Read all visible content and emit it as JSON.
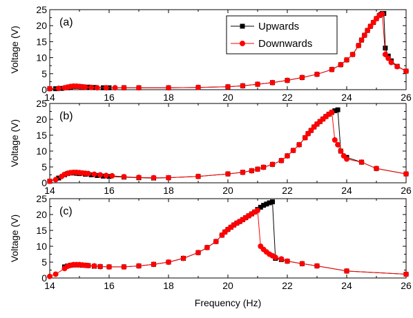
{
  "chart_data": [
    {
      "type": "line",
      "panel_label": "(a)",
      "ylabel": "Voltage (V)",
      "xlabel": "",
      "xlim": [
        14,
        26
      ],
      "ylim": [
        0,
        25
      ],
      "xticks": [
        "14",
        "16",
        "18",
        "20",
        "22",
        "24",
        "26"
      ],
      "yticks": [
        "0",
        "5",
        "10",
        "15",
        "20",
        "25"
      ],
      "legend": {
        "position": "top-right",
        "entries": [
          "Upwards",
          "Downwards"
        ]
      },
      "series": [
        {
          "name": "Upwards",
          "color": "#000000",
          "marker": "square",
          "x": [
            14.0,
            14.2,
            14.4,
            14.6,
            14.7,
            14.8,
            14.9,
            15.0,
            15.1,
            15.3,
            15.5,
            15.8,
            16.0,
            16.5,
            17.0,
            18.0,
            19.0,
            20.0,
            20.5,
            21.0,
            21.5,
            22.0,
            22.5,
            23.0,
            23.5,
            23.8,
            24.0,
            24.2,
            24.4,
            24.5,
            24.6,
            24.7,
            24.8,
            24.9,
            25.0,
            25.1,
            25.15,
            25.2,
            25.25,
            25.3,
            25.4,
            25.5,
            25.7,
            26.0
          ],
          "y": [
            0.3,
            0.3,
            0.4,
            0.6,
            0.8,
            1.0,
            1.0,
            1.0,
            0.9,
            0.8,
            0.7,
            0.6,
            0.6,
            0.6,
            0.6,
            0.6,
            0.7,
            0.9,
            1.2,
            1.7,
            2.2,
            2.9,
            3.8,
            4.8,
            6.3,
            7.8,
            9.3,
            11.0,
            13.8,
            15.5,
            17.0,
            18.5,
            19.8,
            21.0,
            22.2,
            23.2,
            23.5,
            23.8,
            23.8,
            13.0,
            10.5,
            9.0,
            7.3,
            5.8
          ]
        },
        {
          "name": "Downwards",
          "color": "#ff0000",
          "marker": "circle",
          "x": [
            14.0,
            14.3,
            14.5,
            14.6,
            14.7,
            14.8,
            14.9,
            15.0,
            15.1,
            15.2,
            15.4,
            15.6,
            15.9,
            16.2,
            16.5,
            17.0,
            18.0,
            19.0,
            20.0,
            20.5,
            21.0,
            21.5,
            22.0,
            22.5,
            23.0,
            23.5,
            23.8,
            24.0,
            24.2,
            24.4,
            24.5,
            24.6,
            24.7,
            24.8,
            24.9,
            25.0,
            25.1,
            25.2,
            25.3,
            25.4,
            25.5,
            25.7,
            26.0
          ],
          "y": [
            0.3,
            0.4,
            0.6,
            0.8,
            1.0,
            1.1,
            1.1,
            1.0,
            0.9,
            0.8,
            0.7,
            0.6,
            0.6,
            0.6,
            0.6,
            0.6,
            0.6,
            0.7,
            0.9,
            1.2,
            1.7,
            2.2,
            2.9,
            3.8,
            4.8,
            6.3,
            7.8,
            9.3,
            11.0,
            13.8,
            15.5,
            17.0,
            18.5,
            19.8,
            21.0,
            22.2,
            23.2,
            23.6,
            11.0,
            9.8,
            8.5,
            7.2,
            5.8
          ]
        }
      ]
    },
    {
      "type": "line",
      "panel_label": "(b)",
      "ylabel": "Voltage (V)",
      "xlabel": "",
      "xlim": [
        14,
        26
      ],
      "ylim": [
        0,
        25
      ],
      "xticks": [
        "14",
        "16",
        "18",
        "20",
        "22",
        "24",
        "26"
      ],
      "yticks": [
        "0",
        "5",
        "10",
        "15",
        "20",
        "25"
      ],
      "series": [
        {
          "name": "Upwards",
          "color": "#000000",
          "marker": "square",
          "x": [
            14.0,
            14.3,
            14.5,
            14.6,
            14.7,
            14.8,
            14.9,
            15.0,
            15.2,
            15.4,
            15.6,
            15.8,
            16.0,
            16.5,
            17.0,
            17.5,
            18.0,
            19.0,
            20.0,
            20.5,
            20.8,
            21.0,
            21.2,
            21.5,
            21.8,
            22.0,
            22.2,
            22.4,
            22.6,
            22.7,
            22.8,
            22.9,
            23.0,
            23.1,
            23.2,
            23.3,
            23.4,
            23.5,
            23.6,
            23.7,
            23.8,
            24.0,
            24.5,
            25.0,
            26.0
          ],
          "y": [
            0.5,
            1.5,
            2.5,
            2.9,
            3.1,
            3.1,
            3.0,
            2.9,
            2.7,
            2.5,
            2.3,
            2.1,
            2.0,
            1.8,
            1.6,
            1.5,
            1.6,
            2.0,
            2.8,
            3.3,
            3.8,
            4.3,
            4.9,
            5.8,
            7.0,
            8.5,
            10.2,
            12.0,
            14.2,
            15.5,
            16.5,
            17.6,
            18.5,
            19.3,
            20.1,
            20.9,
            21.6,
            22.2,
            22.7,
            23.0,
            10.0,
            8.0,
            6.5,
            4.5,
            2.8
          ]
        },
        {
          "name": "Downwards",
          "color": "#ff0000",
          "marker": "circle",
          "x": [
            14.0,
            14.2,
            14.4,
            14.5,
            14.6,
            14.7,
            14.8,
            14.9,
            15.0,
            15.1,
            15.2,
            15.3,
            15.5,
            15.7,
            15.9,
            16.1,
            16.5,
            17.0,
            17.5,
            18.0,
            19.0,
            20.0,
            20.5,
            20.8,
            21.0,
            21.2,
            21.5,
            21.8,
            22.0,
            22.2,
            22.4,
            22.6,
            22.7,
            22.8,
            22.9,
            23.0,
            23.1,
            23.2,
            23.3,
            23.4,
            23.5,
            23.6,
            23.7,
            23.8,
            23.9,
            24.0,
            24.5,
            25.0,
            26.0
          ],
          "y": [
            0.5,
            1.0,
            2.0,
            2.6,
            3.0,
            3.2,
            3.3,
            3.3,
            3.2,
            3.1,
            3.0,
            2.9,
            2.7,
            2.5,
            2.3,
            2.2,
            1.9,
            1.7,
            1.6,
            1.6,
            2.0,
            2.8,
            3.3,
            3.8,
            4.3,
            4.9,
            5.8,
            7.0,
            8.5,
            10.2,
            12.0,
            14.2,
            15.5,
            16.5,
            17.6,
            18.5,
            19.3,
            20.1,
            20.9,
            21.6,
            22.2,
            13.5,
            12.0,
            10.0,
            8.5,
            7.5,
            6.5,
            4.5,
            2.8
          ]
        }
      ]
    },
    {
      "type": "line",
      "panel_label": "(c)",
      "ylabel": "Voltage (V)",
      "xlabel": "Frequency (Hz)",
      "xlim": [
        14,
        26
      ],
      "ylim": [
        0,
        25
      ],
      "xticks": [
        "14",
        "16",
        "18",
        "20",
        "22",
        "24",
        "26"
      ],
      "yticks": [
        "0",
        "5",
        "10",
        "15",
        "20",
        "25"
      ],
      "series": [
        {
          "name": "Upwards",
          "color": "#000000",
          "marker": "square",
          "x": [
            14.5,
            14.6,
            14.7,
            14.8,
            14.9,
            15.0,
            15.1,
            15.2,
            15.3,
            15.5,
            15.7,
            16.0,
            16.5,
            17.0,
            17.5,
            18.0,
            18.5,
            19.0,
            19.3,
            19.6,
            19.8,
            19.9,
            20.0,
            20.1,
            20.2,
            20.3,
            20.4,
            20.5,
            20.6,
            20.7,
            20.8,
            20.9,
            21.0,
            21.1,
            21.2,
            21.3,
            21.4,
            21.5,
            21.6,
            21.8,
            22.0,
            22.5,
            23.0,
            24.0,
            26.0
          ],
          "y": [
            3.5,
            3.8,
            4.0,
            4.1,
            4.1,
            4.1,
            4.0,
            4.0,
            3.9,
            3.7,
            3.6,
            3.5,
            3.5,
            3.8,
            4.3,
            5.0,
            6.2,
            8.0,
            9.6,
            11.5,
            13.5,
            14.5,
            15.3,
            16.0,
            16.7,
            17.3,
            17.8,
            18.4,
            19.0,
            19.6,
            20.2,
            20.8,
            21.6,
            22.3,
            22.9,
            23.3,
            23.7,
            24.0,
            6.2,
            5.8,
            5.3,
            4.5,
            3.8,
            2.2,
            1.2
          ]
        },
        {
          "name": "Downwards",
          "color": "#ff0000",
          "marker": "circle",
          "x": [
            14.0,
            14.2,
            14.5,
            14.6,
            14.7,
            14.8,
            14.9,
            15.0,
            15.1,
            15.2,
            15.3,
            15.5,
            15.7,
            16.0,
            16.5,
            17.0,
            17.5,
            18.0,
            18.5,
            19.0,
            19.3,
            19.6,
            19.8,
            19.9,
            20.0,
            20.1,
            20.2,
            20.3,
            20.4,
            20.5,
            20.6,
            20.7,
            20.8,
            20.9,
            21.0,
            21.1,
            21.2,
            21.3,
            21.4,
            21.5,
            21.6,
            21.8,
            22.0,
            22.5,
            23.0,
            24.0,
            26.0
          ],
          "y": [
            0.5,
            1.2,
            3.0,
            3.7,
            4.0,
            4.2,
            4.2,
            4.2,
            4.1,
            4.0,
            3.9,
            3.8,
            3.6,
            3.5,
            3.5,
            3.8,
            4.3,
            5.0,
            6.2,
            8.0,
            9.6,
            11.5,
            13.5,
            14.5,
            15.3,
            16.0,
            16.7,
            17.3,
            17.8,
            18.4,
            19.0,
            19.6,
            20.2,
            20.8,
            21.3,
            10.0,
            9.0,
            8.2,
            7.5,
            7.0,
            6.5,
            6.0,
            5.3,
            4.5,
            3.8,
            2.2,
            1.2
          ]
        }
      ]
    }
  ]
}
